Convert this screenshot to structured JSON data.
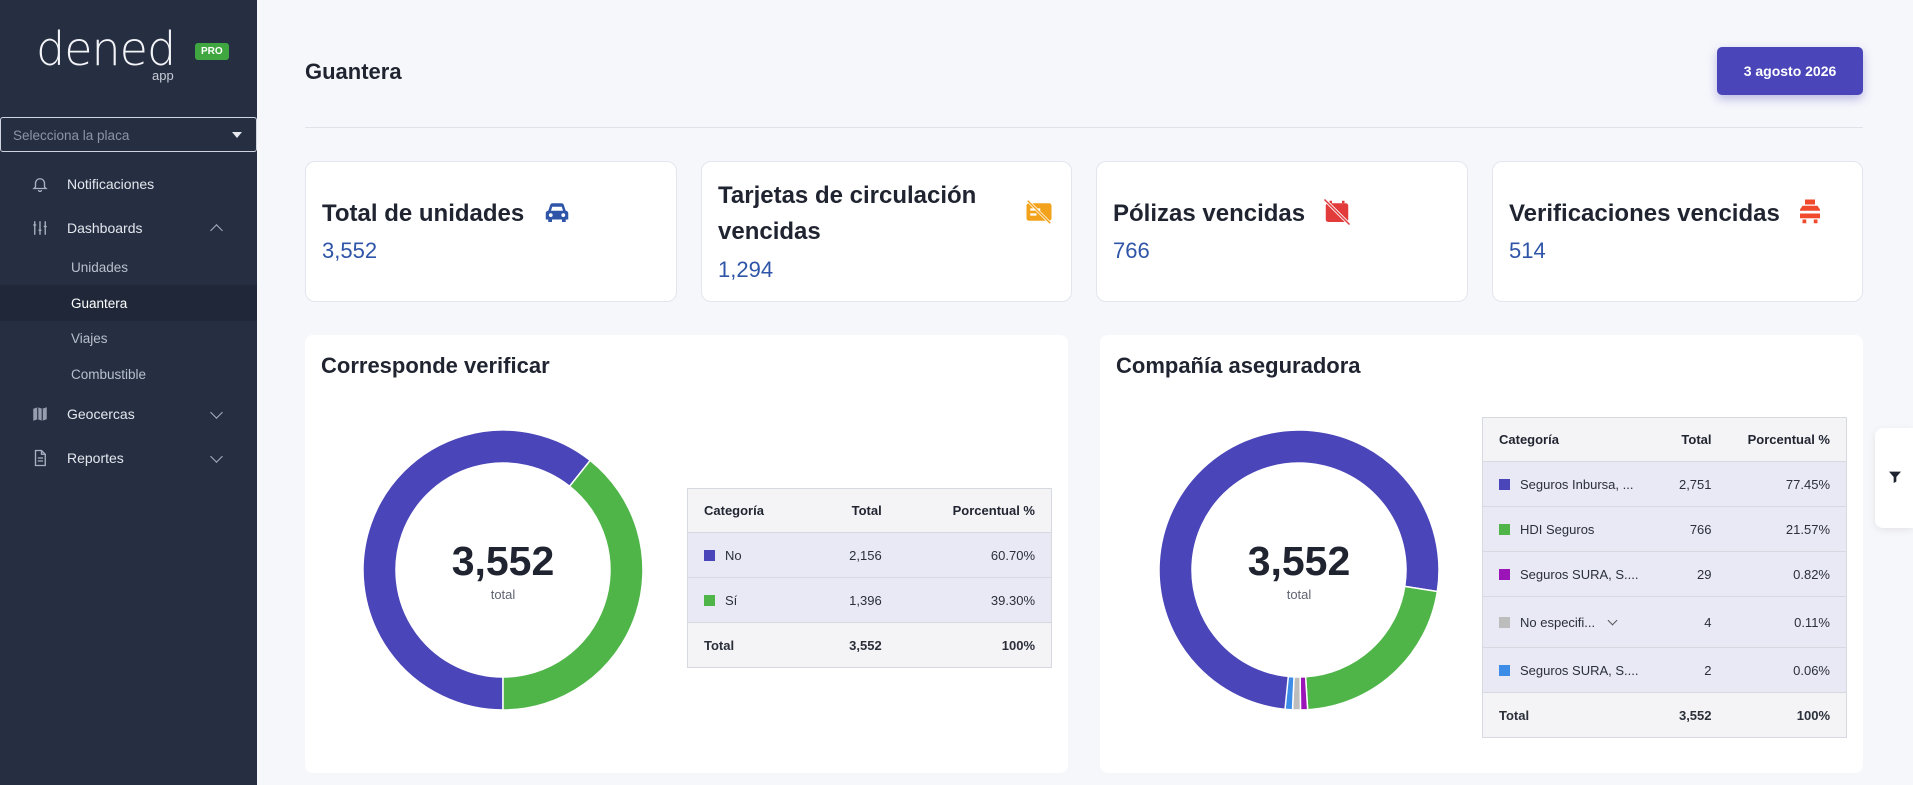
{
  "brand": {
    "logo": "dened",
    "logo_sub": "app",
    "badge": "PRO"
  },
  "sidebar": {
    "plate_placeholder": "Selecciona la placa",
    "items": [
      {
        "label": "Notificaciones",
        "icon": "bell-icon"
      },
      {
        "label": "Dashboards",
        "icon": "sliders-icon",
        "expanded": true,
        "children": [
          "Unidades",
          "Guantera",
          "Viajes",
          "Combustible"
        ],
        "active_child": "Guantera"
      },
      {
        "label": "Geocercas",
        "icon": "map-icon",
        "expanded": false
      },
      {
        "label": "Reportes",
        "icon": "document-icon",
        "expanded": false
      }
    ]
  },
  "header": {
    "title": "Guantera",
    "date": "3 agosto 2026"
  },
  "cards": [
    {
      "title": "Total de unidades",
      "value": "3,552",
      "icon": "car-icon",
      "icon_color": "#2f55a8"
    },
    {
      "title": "Tarjetas de circulación vencidas",
      "value": "1,294",
      "icon": "card-off-icon",
      "icon_color": "#f2a21b"
    },
    {
      "title": "Pólizas vencidas",
      "value": "766",
      "icon": "shield-off-icon",
      "icon_color": "#e23b3b"
    },
    {
      "title": "Verificaciones vencidas",
      "value": "514",
      "icon": "car-warning-icon",
      "icon_color": "#f0492c"
    }
  ],
  "panels": [
    {
      "title": "Corresponde verificar",
      "total": "3,552",
      "total_label": "total",
      "columns": [
        "Categoría",
        "Total",
        "Porcentual %"
      ],
      "rows": [
        {
          "label": "No",
          "total": "2,156",
          "pct": "60.70%",
          "color": "#4a45b8"
        },
        {
          "label": "Sí",
          "total": "1,396",
          "pct": "39.30%",
          "color": "#4fb548"
        }
      ],
      "footer": {
        "label": "Total",
        "total": "3,552",
        "pct": "100%"
      }
    },
    {
      "title": "Compañía aseguradora",
      "total": "3,552",
      "total_label": "total",
      "columns": [
        "Categoría",
        "Total",
        "Porcentual %"
      ],
      "rows": [
        {
          "label": "Seguros Inbursa, ...",
          "total": "2,751",
          "pct": "77.45%",
          "color": "#4a45b8"
        },
        {
          "label": "HDI Seguros",
          "total": "766",
          "pct": "21.57%",
          "color": "#4fb548"
        },
        {
          "label": "Seguros SURA, S....",
          "total": "29",
          "pct": "0.82%",
          "color": "#9b14b8"
        },
        {
          "label": "No especifi...",
          "total": "4",
          "pct": "0.11%",
          "color": "#bdbdbd",
          "expandable": true
        },
        {
          "label": "Seguros SURA, S....",
          "total": "2",
          "pct": "0.06%",
          "color": "#3d8ce8"
        }
      ],
      "footer": {
        "label": "Total",
        "total": "3,552",
        "pct": "100%"
      }
    }
  ],
  "chart_data": [
    {
      "type": "pie",
      "categories": [
        "No",
        "Sí"
      ],
      "values": [
        2156,
        1396
      ],
      "title": "Corresponde verificar",
      "colors": [
        "#4a45b8",
        "#4fb548"
      ]
    },
    {
      "type": "pie",
      "categories": [
        "Seguros Inbursa, ...",
        "HDI Seguros",
        "Seguros SURA, S....",
        "No especifi...",
        "Seguros SURA, S...."
      ],
      "values": [
        2751,
        766,
        29,
        4,
        2
      ],
      "title": "Compañía aseguradora",
      "colors": [
        "#4a45b8",
        "#4fb548",
        "#9b14b8",
        "#bdbdbd",
        "#3d8ce8"
      ]
    }
  ],
  "filter_icon": "filter-icon"
}
